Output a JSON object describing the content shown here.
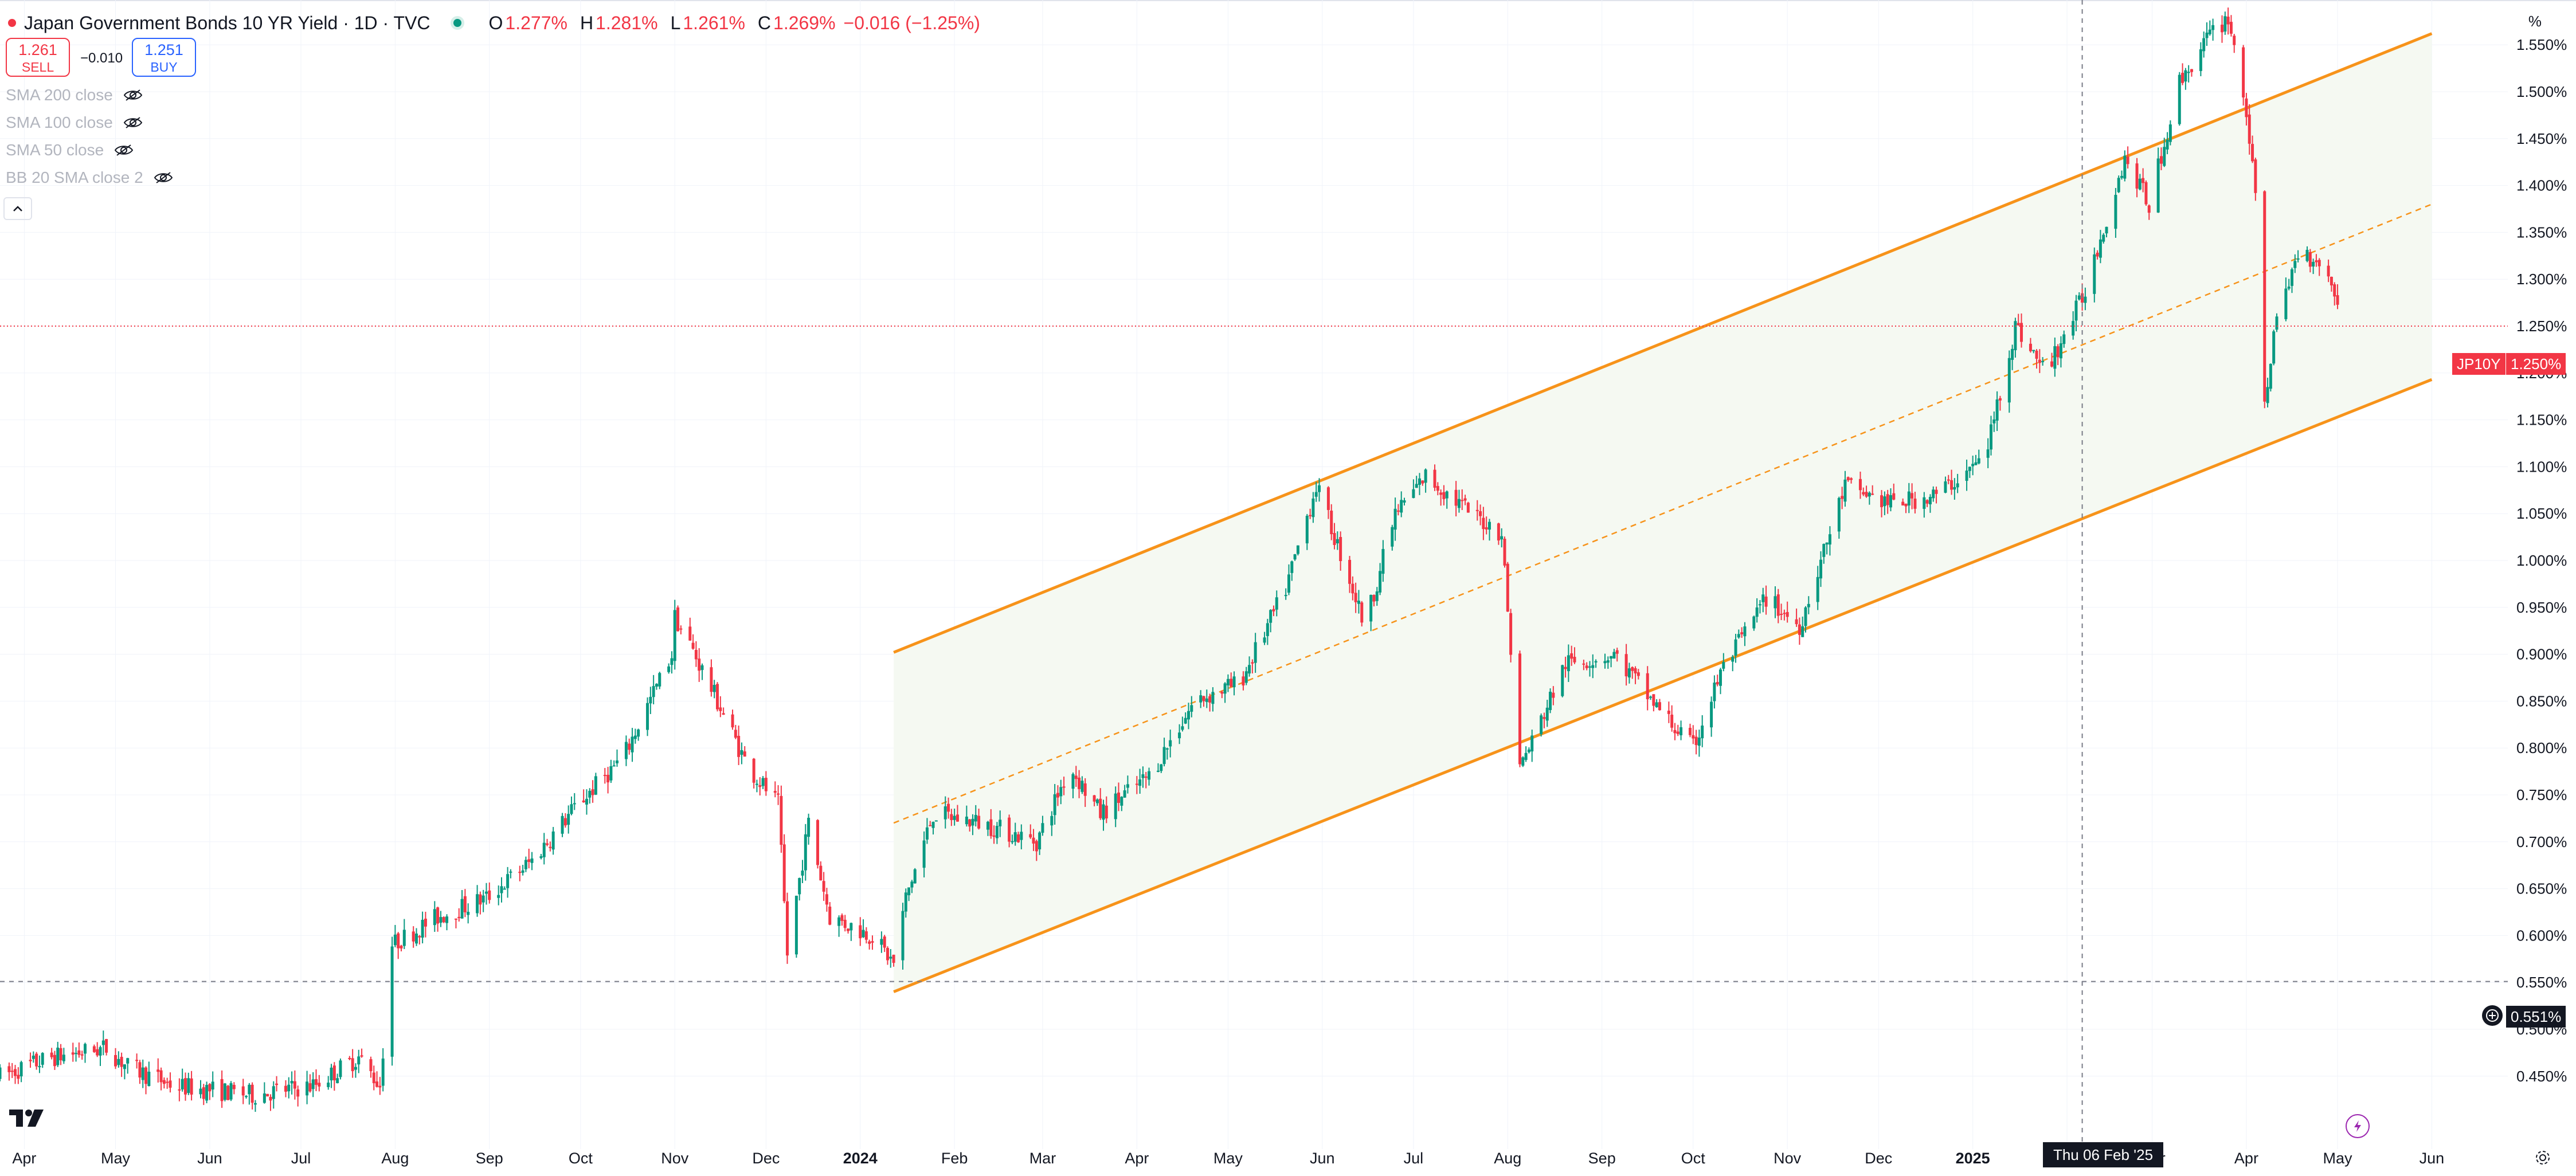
{
  "header": {
    "title": "Japan Government Bonds 10 YR Yield · 1D · TVC",
    "status_dot_color": "#089981",
    "open_label": "O",
    "open_value": "1.277%",
    "high_label": "H",
    "high_value": "1.281%",
    "low_label": "L",
    "low_value": "1.261%",
    "close_label": "C",
    "close_value": "1.269%",
    "change": "−0.016 (−1.25%)"
  },
  "trade": {
    "sell_price": "1.261",
    "sell_label": "SELL",
    "spread": "−0.010",
    "buy_price": "1.251",
    "buy_label": "BUY"
  },
  "indicators": [
    {
      "label": "SMA 200 close",
      "icon": "eye-off-icon"
    },
    {
      "label": "SMA 100 close",
      "icon": "eye-off-icon"
    },
    {
      "label": "SMA 50 close",
      "icon": "eye-off-icon"
    },
    {
      "label": "BB 20 SMA close 2",
      "icon": "eye-off-icon"
    }
  ],
  "scale_mode": "%",
  "price_tags": {
    "symbol": "JP10Y",
    "last_price": "1.250%",
    "crosshair_price": "0.551%"
  },
  "crosshair_date": "Thu 06 Feb '25",
  "colors": {
    "up": "#089981",
    "down": "#f23645",
    "channel": "#f7931a",
    "channel_fill": "#f5f9f2",
    "grid": "#f0f3fa"
  },
  "chart_data": {
    "type": "candlestick",
    "title": "Japan Government Bonds 10 YR Yield · 1D · TVC",
    "symbol": "JP10Y",
    "interval": "1D",
    "x_axis": {
      "labels": [
        "Apr",
        "May",
        "Jun",
        "Jul",
        "Aug",
        "Sep",
        "Oct",
        "Nov",
        "Dec",
        "2024",
        "Feb",
        "Mar",
        "Apr",
        "May",
        "Jun",
        "Jul",
        "Aug",
        "Sep",
        "Oct",
        "Nov",
        "Dec",
        "2025",
        "Feb",
        "Mar",
        "Apr",
        "May",
        "Jun"
      ],
      "bold": [
        "2024",
        "2025"
      ],
      "range": [
        "2023-03-24",
        "2025-06-26"
      ]
    },
    "y_axis": {
      "unit": "%",
      "range": [
        0.43,
        1.59
      ],
      "ticks": [
        "0.450%",
        "0.500%",
        "0.550%",
        "0.600%",
        "0.650%",
        "0.700%",
        "0.750%",
        "0.800%",
        "0.850%",
        "0.900%",
        "0.950%",
        "1.000%",
        "1.050%",
        "1.100%",
        "1.150%",
        "1.200%",
        "1.250%",
        "1.300%",
        "1.350%",
        "1.400%",
        "1.450%",
        "1.500%",
        "1.550%"
      ],
      "position": "right"
    },
    "price_path": [
      [
        "2023-03-24",
        0.45
      ],
      [
        "2023-04-10",
        0.47
      ],
      [
        "2023-04-28",
        0.48
      ],
      [
        "2023-05-05",
        0.46
      ],
      [
        "2023-05-20",
        0.44
      ],
      [
        "2023-06-15",
        0.43
      ],
      [
        "2023-07-05",
        0.44
      ],
      [
        "2023-07-20",
        0.47
      ],
      [
        "2023-07-27",
        0.44
      ],
      [
        "2023-07-31",
        0.59
      ],
      [
        "2023-08-15",
        0.62
      ],
      [
        "2023-08-31",
        0.64
      ],
      [
        "2023-09-15",
        0.68
      ],
      [
        "2023-09-30",
        0.74
      ],
      [
        "2023-10-15",
        0.79
      ],
      [
        "2023-10-31",
        0.9
      ],
      [
        "2023-11-01",
        0.94
      ],
      [
        "2023-11-06",
        0.91
      ],
      [
        "2023-11-15",
        0.85
      ],
      [
        "2023-11-25",
        0.78
      ],
      [
        "2023-12-05",
        0.74
      ],
      [
        "2023-12-08",
        0.58
      ],
      [
        "2023-12-15",
        0.72
      ],
      [
        "2023-12-22",
        0.62
      ],
      [
        "2024-01-05",
        0.6
      ],
      [
        "2024-01-12",
        0.57
      ],
      [
        "2024-01-16",
        0.64
      ],
      [
        "2024-01-25",
        0.73
      ],
      [
        "2024-02-10",
        0.72
      ],
      [
        "2024-02-28",
        0.7
      ],
      [
        "2024-03-10",
        0.78
      ],
      [
        "2024-03-20",
        0.73
      ],
      [
        "2024-04-05",
        0.77
      ],
      [
        "2024-04-20",
        0.85
      ],
      [
        "2024-05-05",
        0.87
      ],
      [
        "2024-05-20",
        0.97
      ],
      [
        "2024-05-30",
        1.08
      ],
      [
        "2024-06-10",
        0.98
      ],
      [
        "2024-06-15",
        0.93
      ],
      [
        "2024-06-25",
        1.05
      ],
      [
        "2024-07-05",
        1.09
      ],
      [
        "2024-07-20",
        1.05
      ],
      [
        "2024-07-30",
        1.03
      ],
      [
        "2024-08-05",
        0.78
      ],
      [
        "2024-08-08",
        0.8
      ],
      [
        "2024-08-20",
        0.89
      ],
      [
        "2024-09-05",
        0.9
      ],
      [
        "2024-09-20",
        0.84
      ],
      [
        "2024-10-01",
        0.8
      ],
      [
        "2024-10-10",
        0.88
      ],
      [
        "2024-10-25",
        0.96
      ],
      [
        "2024-11-05",
        0.93
      ],
      [
        "2024-11-20",
        1.08
      ],
      [
        "2024-12-05",
        1.06
      ],
      [
        "2024-12-20",
        1.07
      ],
      [
        "2025-01-05",
        1.11
      ],
      [
        "2025-01-15",
        1.25
      ],
      [
        "2025-01-25",
        1.2
      ],
      [
        "2025-02-06",
        1.28
      ],
      [
        "2025-02-20",
        1.43
      ],
      [
        "2025-02-28",
        1.38
      ],
      [
        "2025-03-10",
        1.51
      ],
      [
        "2025-03-20",
        1.56
      ],
      [
        "2025-03-26",
        1.58
      ],
      [
        "2025-04-01",
        1.48
      ],
      [
        "2025-04-05",
        1.35
      ],
      [
        "2025-04-07",
        1.17
      ],
      [
        "2025-04-10",
        1.24
      ],
      [
        "2025-04-18",
        1.33
      ],
      [
        "2025-04-25",
        1.32
      ],
      [
        "2025-05-01",
        1.28
      ]
    ],
    "last_close": 1.25,
    "channel": {
      "start": "2024-01-12",
      "end": "2025-06-01",
      "upper": [
        0.902,
        1.562
      ],
      "middle": [
        0.72,
        1.38
      ],
      "lower": [
        0.54,
        1.193
      ]
    },
    "horizontal_line": 0.551,
    "crosshair_x": "2025-02-06"
  }
}
